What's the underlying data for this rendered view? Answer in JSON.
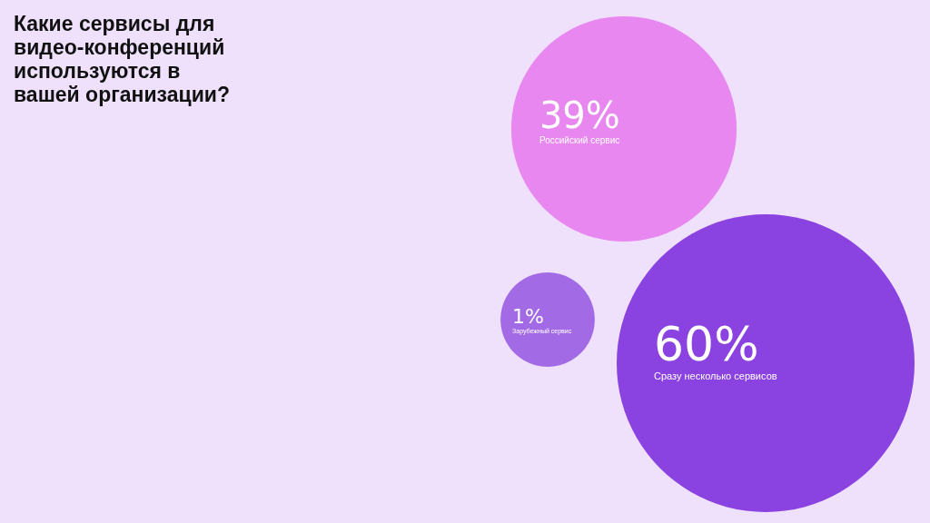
{
  "chart_data": {
    "type": "other",
    "title": "Какие сервисы для видео-конференций используются в вашей организации?",
    "categories": [
      "Российский сервис",
      "Зарубежный сервис",
      "Сразу несколько сервисов"
    ],
    "values": [
      39,
      1,
      60
    ],
    "value_labels": [
      "39%",
      "1%",
      "60%"
    ],
    "colors": [
      "#e887f0",
      "#a36ae6",
      "#8a42e0"
    ]
  }
}
